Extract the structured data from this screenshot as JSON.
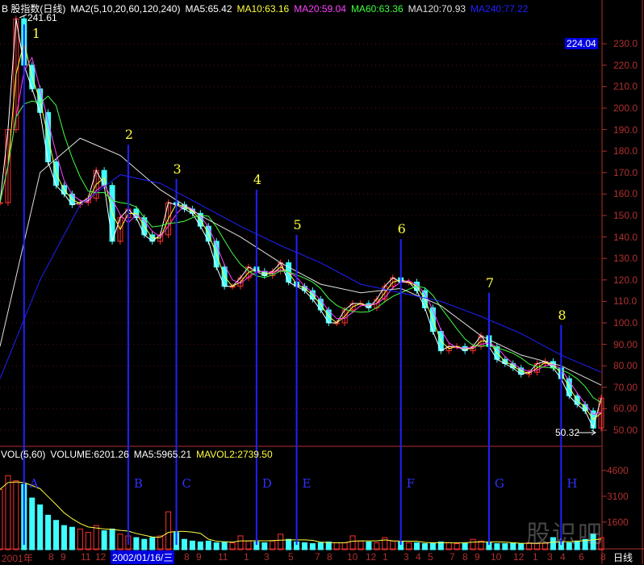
{
  "header": {
    "title": "B 股指数(日线)",
    "ma_def": "MA2(5,10,20,60,120,240)",
    "ma5": "MA5:65.42",
    "ma10": "MA10:63.16",
    "ma20": "MA20:59.04",
    "ma60": "MA60:63.36",
    "ma120": "MA120:70.93",
    "ma240": "MA240:77.22"
  },
  "volume_header": {
    "title": "VOL(5,60)",
    "volume": "VOLUME:6201.26",
    "ma5": "MA5:5965.21",
    "mavol2": "MAVOL2:2739.50"
  },
  "colors": {
    "ma5": "#ffffff",
    "ma10": "#ffff40",
    "ma20": "#ff40ff",
    "ma60": "#40ff40",
    "ma120": "#e0e0e0",
    "ma240": "#2020ff",
    "up": "#ff3030",
    "down": "#40ffff",
    "axis": "#b03030",
    "marker_line": "#2020ff",
    "marker_number": "#ffff40"
  },
  "x_axis": {
    "labels": [
      "2001年",
      "8",
      "9",
      "11",
      "12",
      "8",
      "9",
      "11",
      "1",
      "3",
      "5",
      "7",
      "8",
      "10",
      "12",
      "1",
      "3",
      "4",
      "5",
      "7",
      "8",
      "9",
      "10",
      "12",
      "1",
      "3",
      "4",
      "6",
      "8"
    ],
    "cursor_date": "2002/01/16/三",
    "period": "日线"
  },
  "watermark": "股识吧",
  "chart_data": {
    "type": "candlestick",
    "price_axis": {
      "ticks": [
        50,
        60,
        70,
        80,
        90,
        100,
        110,
        120,
        130,
        140,
        150,
        160,
        170,
        180,
        190,
        200,
        210,
        220,
        230
      ],
      "tick_labels": [
        "50.00",
        "60.00",
        "70.00",
        "80.00",
        "90.00",
        "100.0",
        "110.0",
        "120.0",
        "130.0",
        "140.0",
        "150.0",
        "160.0",
        "170.0",
        "180.0",
        "190.0",
        "200.0",
        "210.0",
        "220.0",
        "230.0"
      ],
      "ylim": [
        46,
        246
      ]
    },
    "volume_axis": {
      "ticks": [
        1600,
        3100,
        4600
      ],
      "tick_labels": [
        "1600",
        "3100",
        "4600"
      ]
    },
    "last_price": "224.04",
    "high_label": "241.61",
    "low_label": "50.32",
    "close": [
      156,
      190,
      241.61,
      220,
      209,
      198,
      175,
      164,
      160,
      155,
      156,
      158,
      171,
      164,
      138,
      149,
      153,
      149,
      141,
      138,
      141,
      156,
      155,
      153,
      151,
      145,
      138,
      126,
      117,
      117,
      121,
      126,
      124,
      122,
      124,
      128,
      119,
      117,
      115,
      111,
      106,
      100,
      100,
      106,
      109,
      109,
      107,
      111,
      117,
      121,
      119,
      119,
      115,
      107,
      96,
      87,
      89,
      89,
      87,
      89,
      94,
      89,
      83,
      81,
      79,
      76,
      77,
      81,
      82,
      79,
      74,
      66,
      62,
      59,
      51,
      65
    ],
    "ma120": [
      89,
      170,
      186,
      178,
      162,
      150,
      140,
      128,
      118,
      114,
      116,
      108,
      94,
      85,
      80,
      71
    ],
    "ma240": [
      74,
      120,
      155,
      169,
      165,
      155,
      145,
      136,
      128,
      118,
      114,
      110,
      103,
      95,
      85,
      77
    ],
    "volume": [
      3500,
      4300,
      4000,
      3800,
      3000,
      2600,
      2000,
      1700,
      1400,
      1300,
      1200,
      1000,
      1400,
      1100,
      1200,
      900,
      800,
      700,
      600,
      700,
      800,
      2200,
      1000,
      600,
      500,
      450,
      500,
      400,
      450,
      400,
      800,
      500,
      450,
      400,
      500,
      900,
      600,
      450,
      400,
      350,
      400,
      450,
      400,
      400,
      800,
      500,
      450,
      400,
      700,
      500,
      450,
      400,
      400,
      350,
      400,
      450,
      400,
      350,
      400,
      600,
      500,
      400,
      350,
      350,
      400,
      350,
      400,
      350,
      400,
      700,
      450,
      400,
      500,
      600,
      900,
      700
    ],
    "markers": [
      {
        "label": "1",
        "letter": "A",
        "point": 3,
        "top": 239
      },
      {
        "label": "2",
        "letter": "B",
        "point": 16,
        "top": 183
      },
      {
        "label": "3",
        "letter": "C",
        "point": 22,
        "top": 167
      },
      {
        "label": "4",
        "letter": "D",
        "point": 32,
        "top": 162
      },
      {
        "label": "5",
        "letter": "E",
        "point": 37,
        "top": 141
      },
      {
        "label": "6",
        "letter": "F",
        "point": 50,
        "top": 139
      },
      {
        "label": "7",
        "letter": "G",
        "point": 61,
        "top": 114
      },
      {
        "label": "8",
        "letter": "H",
        "point": 70,
        "top": 99
      }
    ]
  }
}
